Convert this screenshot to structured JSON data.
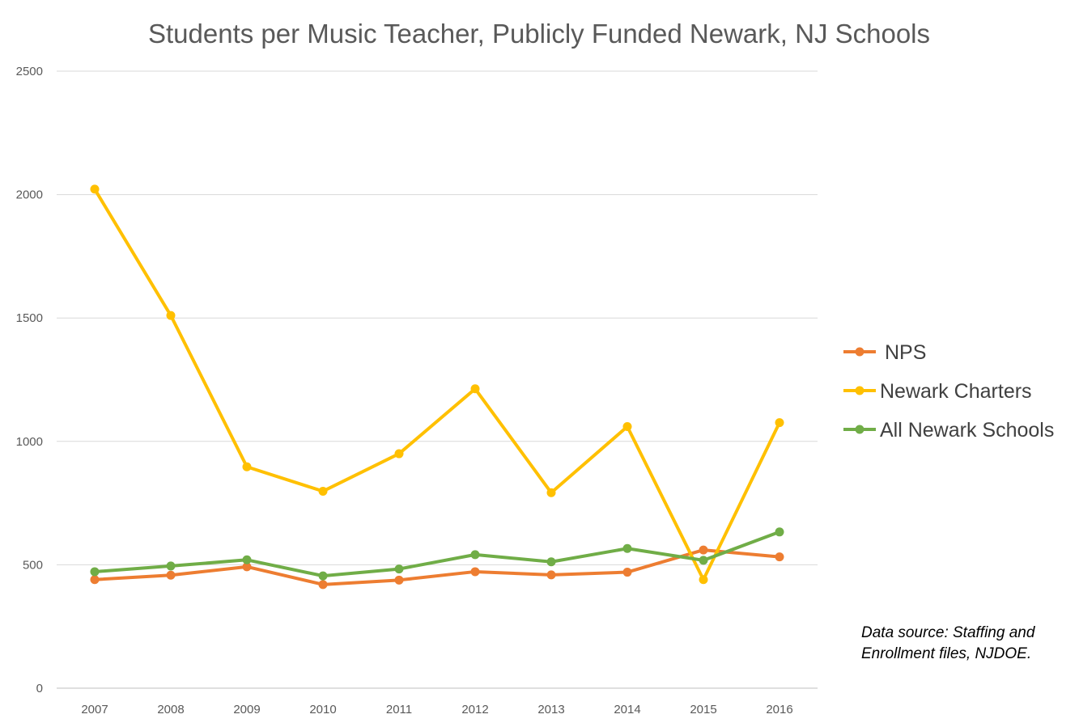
{
  "chart_data": {
    "type": "line",
    "title": "Students per Music Teacher, Publicly Funded Newark, NJ Schools",
    "xlabel": "",
    "ylabel": "",
    "categories": [
      "2007",
      "2008",
      "2009",
      "2010",
      "2011",
      "2012",
      "2013",
      "2014",
      "2015",
      "2016"
    ],
    "ylim": [
      0,
      2500
    ],
    "yticks": [
      0,
      500,
      1000,
      1500,
      2000,
      2500
    ],
    "grid": true,
    "legend_position": "right",
    "series": [
      {
        "name": "NPS",
        "color": "#ED7D31",
        "values": [
          440,
          458,
          492,
          420,
          438,
          472,
          459,
          470,
          560,
          532
        ]
      },
      {
        "name": "Newark Charters",
        "color": "#FFC000",
        "values": [
          2022,
          1510,
          897,
          798,
          950,
          1213,
          792,
          1060,
          440,
          1076
        ]
      },
      {
        "name": "All Newark Schools",
        "color": "#70AD47",
        "values": [
          472,
          495,
          520,
          455,
          483,
          541,
          512,
          566,
          518,
          633
        ]
      }
    ]
  },
  "source_note": "Data source: Staffing and Enrollment  files, NJDOE."
}
